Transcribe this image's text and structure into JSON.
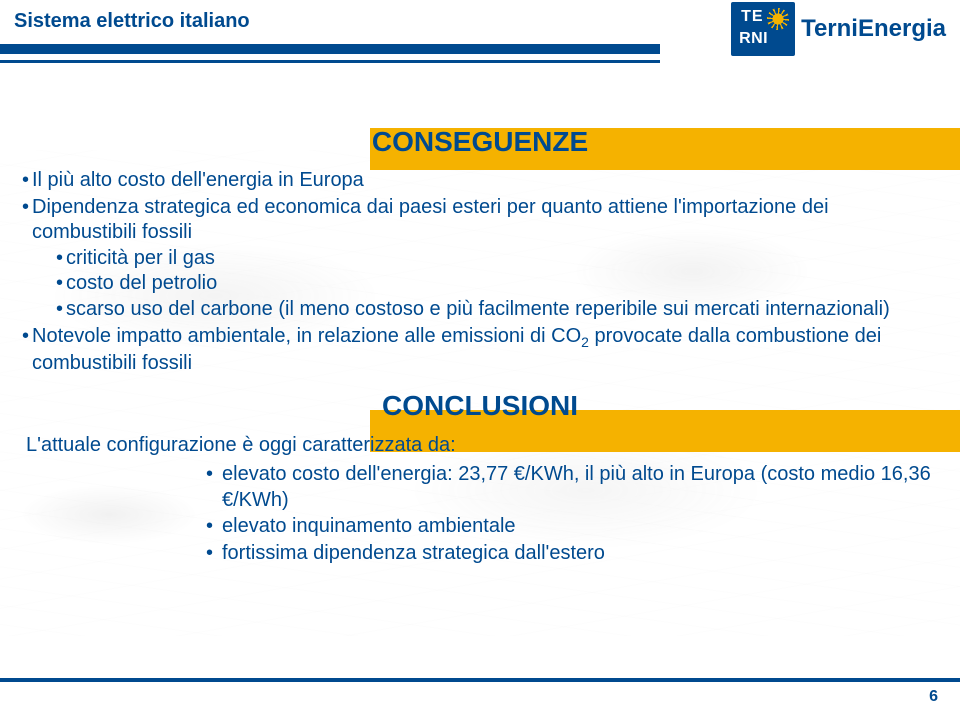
{
  "colors": {
    "brand_blue": "#004a8f",
    "brand_yellow": "#f5b200",
    "background": "#ffffff"
  },
  "header": {
    "slide_title": "Sistema elettrico italiano",
    "logo": {
      "top": "TE",
      "bottom": "RNI",
      "company": "TerniEnergia"
    }
  },
  "section1": {
    "title": "CONSEGUENZE",
    "bullets": [
      "Il più alto costo dell'energia in Europa",
      "Dipendenza strategica ed economica dai paesi esteri per quanto attiene l'importazione dei combustibili fossili",
      "criticità per il gas",
      "costo del petrolio",
      "scarso uso del carbone (il meno costoso e più facilmente reperibile sui mercati internazionali)",
      "Notevole impatto ambientale, in relazione alle emissioni di CO2 provocate dalla combustione dei combustibili fossili"
    ],
    "sub_indices": [
      2,
      3,
      4
    ]
  },
  "section2": {
    "title": "CONCLUSIONI",
    "intro": "L'attuale configurazione è oggi caratterizzata da:",
    "sub": [
      "elevato costo dell'energia: 23,77 €/KWh, il più alto in Europa (costo medio 16,36 €/KWh)",
      "elevato inquinamento ambientale",
      "fortissima dipendenza strategica dall'estero"
    ]
  },
  "page_number": "6"
}
